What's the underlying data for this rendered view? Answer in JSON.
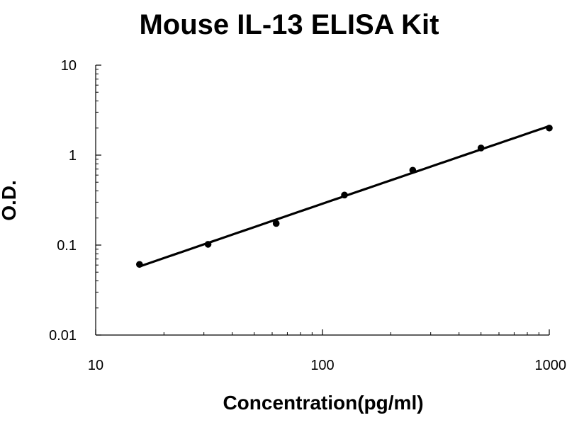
{
  "chart_data": {
    "type": "line",
    "title": "Mouse IL-13 ELISA Kit",
    "xlabel": "Concentration(pg/ml)",
    "ylabel": "O.D.",
    "xscale": "log",
    "yscale": "log",
    "xlim": [
      10,
      1000
    ],
    "ylim": [
      0.01,
      10
    ],
    "x_ticks": [
      {
        "value": 10,
        "label": "10"
      },
      {
        "value": 100,
        "label": "100"
      },
      {
        "value": 1000,
        "label": "1000"
      }
    ],
    "y_ticks": [
      {
        "value": 0.01,
        "label": "0.01"
      },
      {
        "value": 0.1,
        "label": "0.1"
      },
      {
        "value": 1,
        "label": "1"
      },
      {
        "value": 10,
        "label": "10"
      }
    ],
    "grid": false,
    "legend": "none",
    "line_color": "#000000",
    "marker_color": "#000000",
    "series": [
      {
        "x": [
          15.6,
          31.3,
          62.5,
          125,
          250,
          500,
          1000
        ],
        "y": [
          0.061,
          0.102,
          0.174,
          0.36,
          0.68,
          1.2,
          2.0
        ]
      }
    ]
  }
}
